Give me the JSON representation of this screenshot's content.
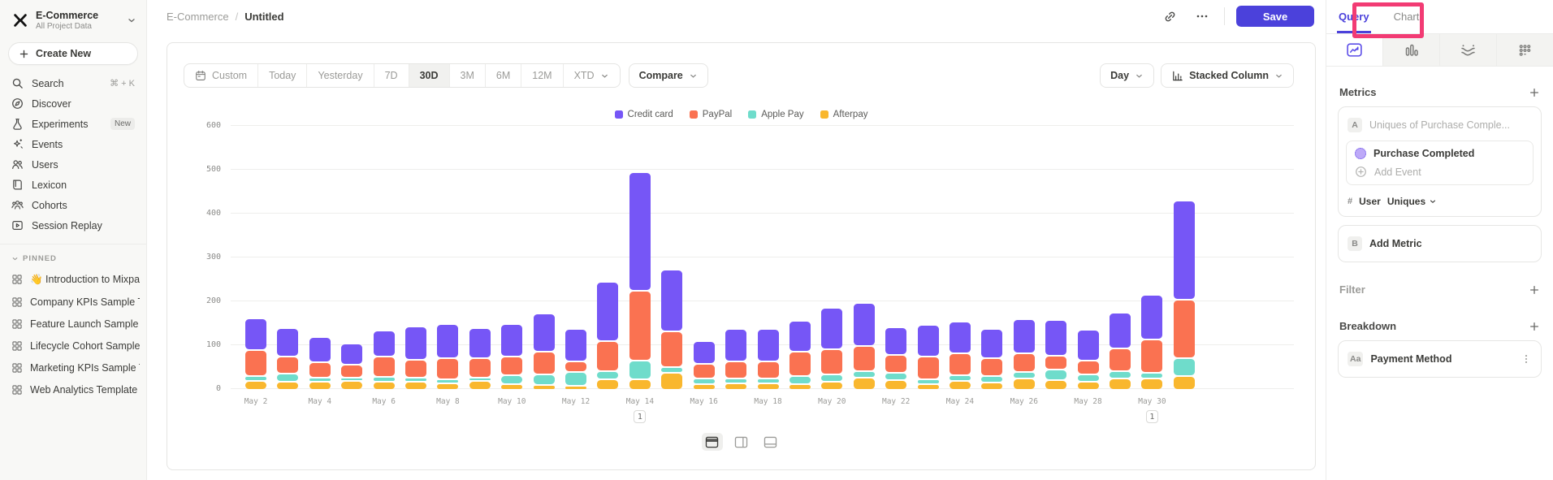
{
  "sidebar": {
    "project": {
      "name": "E-Commerce",
      "subtitle": "All Project Data"
    },
    "create_new_label": "Create New",
    "nav": [
      {
        "icon": "search-icon",
        "label": "Search",
        "shortcut": "⌘ + K"
      },
      {
        "icon": "discover-icon",
        "label": "Discover"
      },
      {
        "icon": "experiments-icon",
        "label": "Experiments",
        "badge": "New"
      },
      {
        "icon": "events-icon",
        "label": "Events"
      },
      {
        "icon": "users-icon",
        "label": "Users"
      },
      {
        "icon": "lexicon-icon",
        "label": "Lexicon"
      },
      {
        "icon": "cohorts-icon",
        "label": "Cohorts"
      },
      {
        "icon": "session-replay-icon",
        "label": "Session Replay"
      }
    ],
    "pinned_header": "PINNED",
    "pinned": [
      "👋 Introduction to Mixpanel Bo",
      "Company KPIs Sample Templat",
      "Feature Launch Sample Templa",
      "Lifecycle Cohort Sample Temp",
      "Marketing KPIs Sample Templat",
      "Web Analytics Template"
    ]
  },
  "header": {
    "breadcrumb": [
      "E-Commerce",
      "Untitled"
    ],
    "save_label": "Save"
  },
  "toolbar": {
    "date_ranges": [
      "Custom",
      "Today",
      "Yesterday",
      "7D",
      "30D",
      "3M",
      "6M",
      "12M",
      "XTD"
    ],
    "active_range": "30D",
    "compare_label": "Compare",
    "granularity_label": "Day",
    "chart_type_label": "Stacked Column"
  },
  "chart_data": {
    "type": "bar",
    "stacked": true,
    "categories": [
      "May 2",
      "May 3",
      "May 4",
      "May 5",
      "May 6",
      "May 7",
      "May 8",
      "May 9",
      "May 10",
      "May 11",
      "May 12",
      "May 13",
      "May 14",
      "May 15",
      "May 16",
      "May 17",
      "May 18",
      "May 19",
      "May 20",
      "May 21",
      "May 22",
      "May 23",
      "May 24",
      "May 25",
      "May 26",
      "May 27",
      "May 28",
      "May 29",
      "May 30",
      "May 31"
    ],
    "xtick_every": 2,
    "series": [
      {
        "name": "Credit card",
        "color": "#7656f6",
        "values": [
          70,
          61,
          54,
          44,
          56,
          72,
          73,
          64,
          71,
          84,
          70,
          132,
          266,
          138,
          48,
          70,
          70,
          67,
          91,
          94,
          60,
          68,
          69,
          62,
          74,
          78,
          66,
          78,
          98,
          222
        ]
      },
      {
        "name": "PayPal",
        "color": "#fa7251",
        "values": [
          55,
          35,
          30,
          27,
          42,
          36,
          45,
          42,
          38,
          49,
          20,
          65,
          155,
          77,
          30,
          35,
          35,
          52,
          53,
          54,
          37,
          48,
          46,
          38,
          39,
          28,
          28,
          47,
          73,
          130
        ]
      },
      {
        "name": "Apple Pay",
        "color": "#6fdccb",
        "values": [
          8,
          16,
          6,
          4,
          7,
          6,
          5,
          4,
          17,
          20,
          28,
          14,
          40,
          10,
          8,
          8,
          8,
          15,
          13,
          11,
          12,
          7,
          10,
          11,
          11,
          20,
          13,
          14,
          9,
          37
        ]
      },
      {
        "name": "Afterpay",
        "color": "#f9b72e",
        "values": [
          16,
          14,
          15,
          16,
          15,
          15,
          12,
          16,
          9,
          7,
          6,
          21,
          20,
          35,
          10,
          11,
          11,
          9,
          15,
          24,
          19,
          10,
          16,
          13,
          22,
          19,
          15,
          22,
          22,
          28
        ]
      }
    ],
    "stack_order_bottom_to_top": [
      "Afterpay",
      "Apple Pay",
      "PayPal",
      "Credit card"
    ],
    "ylim": [
      0,
      600
    ],
    "yticks": [
      0,
      100,
      200,
      300,
      400,
      500,
      600
    ],
    "grid": true,
    "legend_position": "top",
    "annotations": [
      {
        "category": "May 14",
        "badge": "1"
      },
      {
        "category": "May 30",
        "badge": "1"
      }
    ]
  },
  "panel": {
    "tabs": [
      "Query",
      "Chart"
    ],
    "active_tab": "Query",
    "metrics": {
      "title": "Metrics",
      "row_chip": "A",
      "row_placeholder": "Uniques of Purchase Comple...",
      "event_name": "Purchase Completed",
      "add_event_label": "Add Event",
      "count_symbol": "#",
      "count_entity": "User",
      "count_type": "Uniques",
      "add_metric_chip": "B",
      "add_metric_label": "Add Metric"
    },
    "filter_title": "Filter",
    "breakdown_title": "Breakdown",
    "breakdown_chip": "Aa",
    "breakdown_property": "Payment Method"
  },
  "colors": {
    "accent": "#4b41db",
    "annotation_highlight": "#f23b74"
  }
}
